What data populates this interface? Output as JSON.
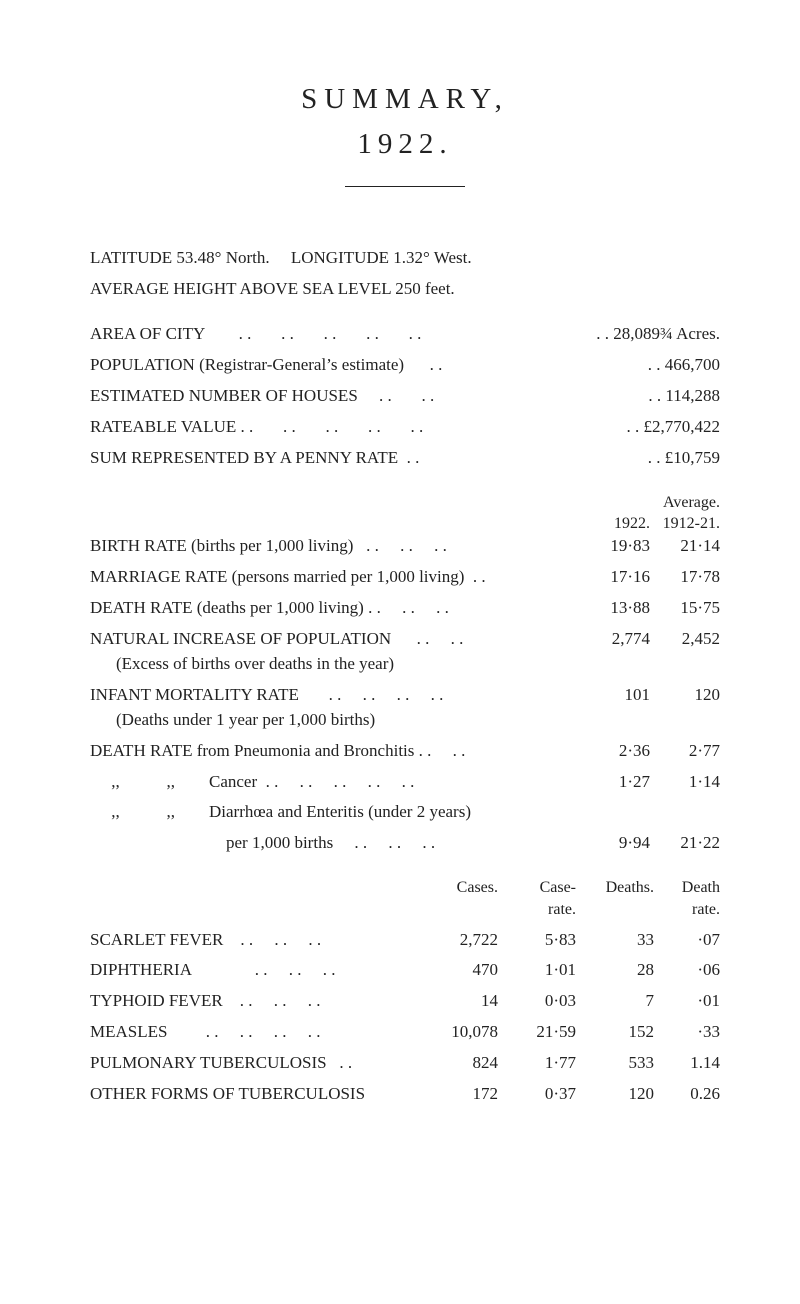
{
  "title": "SUMMARY,",
  "year": "1922.",
  "lat_long": "LATITUDE 53.48° North.     LONGITUDE 1.32° West.",
  "avg_height": "AVERAGE HEIGHT ABOVE SEA LEVEL 250 feet.",
  "general": [
    {
      "label": "AREA OF CITY        . .       . .       . .       . .       . .",
      "value": ". .   28,089¾ Acres."
    },
    {
      "label": "POPULATION (Registrar-General’s estimate)      . .",
      "value": ". .   466,700"
    },
    {
      "label": "ESTIMATED NUMBER OF HOUSES     . .       . .",
      "value": ". .   114,288"
    },
    {
      "label": "RATEABLE VALUE . .       . .       . .       . .       . .",
      "value": ". . £2,770,422"
    },
    {
      "label": "SUM REPRESENTED BY A PENNY RATE  . .",
      "value": ". .   £10,759"
    }
  ],
  "avg_hdr_top": "Average.",
  "avg_hdr_y1": "1922.",
  "avg_hdr_y2": "1912-21.",
  "rates": [
    {
      "label": "BIRTH RATE (births per 1,000 living)   . .     . .     . .",
      "v1": "19·83",
      "v2": "21·14"
    },
    {
      "label": "MARRIAGE RATE (persons married per 1,000 living)  . .",
      "v1": "17·16",
      "v2": "17·78"
    },
    {
      "label": "DEATH RATE (deaths per 1,000 living) . .     . .     . .",
      "v1": "13·88",
      "v2": "15·75"
    },
    {
      "label": "NATURAL INCREASE OF POPULATION      . .     . .",
      "v1": "2,774",
      "v2": "2,452",
      "note": "(Excess of births over deaths in the year)"
    },
    {
      "label": "INFANT MORTALITY RATE       . .     . .     . .     . .",
      "v1": "101",
      "v2": "120",
      "note": "(Deaths under 1 year per 1,000 births)"
    },
    {
      "label": "DEATH RATE from Pneumonia and Bronchitis . .     . .",
      "v1": "2·36",
      "v2": "2·77"
    },
    {
      "label": "     ,,           ,,        Cancer  . .     . .     . .     . .     . .",
      "v1": "1·27",
      "v2": "1·14"
    },
    {
      "label": "     ,,           ,,        Diarrhœa and Enteritis (under 2 years)",
      "v1": "",
      "v2": ""
    },
    {
      "label": "                                per 1,000 births     . .     . .     . .",
      "v1": "9·94",
      "v2": "21·22"
    }
  ],
  "table_headers": {
    "cases": "Cases.",
    "rate": "Case-\nrate.",
    "deaths": "Deaths.",
    "drate": "Death\nrate."
  },
  "diseases": [
    {
      "name": "SCARLET FEVER    . .     . .     . .",
      "cases": "2,722",
      "rate": "5·83",
      "deaths": "33",
      "drate": "·07"
    },
    {
      "name": "DIPHTHERIA               . .     . .     . .",
      "cases": "470",
      "rate": "1·01",
      "deaths": "28",
      "drate": "·06"
    },
    {
      "name": "TYPHOID FEVER    . .     . .     . .",
      "cases": "14",
      "rate": "0·03",
      "deaths": "7",
      "drate": "·01"
    },
    {
      "name": "MEASLES         . .     . .     . .     . .",
      "cases": "10,078",
      "rate": "21·59",
      "deaths": "152",
      "drate": "·33"
    },
    {
      "name": "PULMONARY TUBERCULOSIS   . .",
      "cases": "824",
      "rate": "1·77",
      "deaths": "533",
      "drate": "1.14"
    },
    {
      "name": "OTHER FORMS OF TUBERCULOSIS",
      "cases": "172",
      "rate": "0·37",
      "deaths": "120",
      "drate": "0.26"
    }
  ]
}
